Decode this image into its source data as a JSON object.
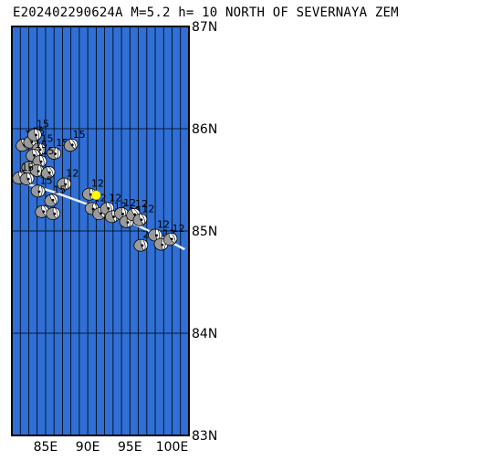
{
  "title": "E202402290624A M=5.2 h= 10 NORTH OF SEVERNAYA ZEM",
  "map": {
    "lon_range": [
      81,
      102
    ],
    "lat_range": [
      83,
      87
    ],
    "ocean_color": "#2f6fd6",
    "grid_color": "#000000",
    "border_color": "#000000",
    "lon_labels": [
      {
        "lon": 85,
        "text": "85E"
      },
      {
        "lon": 90,
        "text": "90E"
      },
      {
        "lon": 95,
        "text": "95E"
      },
      {
        "lon": 100,
        "text": "100E"
      }
    ],
    "lat_labels": [
      {
        "lat": 87,
        "text": "87N"
      },
      {
        "lat": 86,
        "text": "86N"
      },
      {
        "lat": 85,
        "text": "85N"
      },
      {
        "lat": 84,
        "text": "84N"
      },
      {
        "lat": 83,
        "text": "83N"
      }
    ],
    "ridge_line": [
      {
        "lon": 82.8,
        "lat": 85.46
      },
      {
        "lon": 86.0,
        "lat": 85.38
      },
      {
        "lon": 90.0,
        "lat": 85.26
      },
      {
        "lon": 94.0,
        "lat": 85.13
      },
      {
        "lon": 98.0,
        "lat": 84.97
      },
      {
        "lon": 101.5,
        "lat": 84.82
      }
    ],
    "event": {
      "lon": 91.0,
      "lat": 85.35,
      "color": "#ffff00"
    },
    "mechanisms": [
      {
        "lon": 82.3,
        "lat": 85.84,
        "label": "15"
      },
      {
        "lon": 83.2,
        "lat": 85.87,
        "label": "15"
      },
      {
        "lon": 83.7,
        "lat": 85.94,
        "label": "15"
      },
      {
        "lon": 84.2,
        "lat": 85.8,
        "label": "15"
      },
      {
        "lon": 86.0,
        "lat": 85.76,
        "label": "15"
      },
      {
        "lon": 88.0,
        "lat": 85.84,
        "label": "15"
      },
      {
        "lon": 83.5,
        "lat": 85.74,
        "label": "15"
      },
      {
        "lon": 84.3,
        "lat": 85.68,
        "label": "15"
      },
      {
        "lon": 83.0,
        "lat": 85.62,
        "label": ""
      },
      {
        "lon": 84.0,
        "lat": 85.59,
        "label": ""
      },
      {
        "lon": 85.3,
        "lat": 85.57,
        "label": ""
      },
      {
        "lon": 81.9,
        "lat": 85.52,
        "label": "15"
      },
      {
        "lon": 82.8,
        "lat": 85.51,
        "label": ""
      },
      {
        "lon": 87.2,
        "lat": 85.46,
        "label": "12"
      },
      {
        "lon": 84.1,
        "lat": 85.39,
        "label": "15"
      },
      {
        "lon": 85.7,
        "lat": 85.3,
        "label": "15"
      },
      {
        "lon": 84.6,
        "lat": 85.19,
        "label": ""
      },
      {
        "lon": 85.9,
        "lat": 85.17,
        "label": ""
      },
      {
        "lon": 90.2,
        "lat": 85.36,
        "label": "12"
      },
      {
        "lon": 90.5,
        "lat": 85.22,
        "label": "12"
      },
      {
        "lon": 91.4,
        "lat": 85.17,
        "label": ""
      },
      {
        "lon": 92.3,
        "lat": 85.22,
        "label": "12"
      },
      {
        "lon": 92.9,
        "lat": 85.14,
        "label": "12"
      },
      {
        "lon": 94.0,
        "lat": 85.17,
        "label": "12"
      },
      {
        "lon": 94.6,
        "lat": 85.09,
        "label": "12"
      },
      {
        "lon": 95.4,
        "lat": 85.16,
        "label": "12"
      },
      {
        "lon": 96.2,
        "lat": 85.11,
        "label": "12"
      },
      {
        "lon": 96.3,
        "lat": 84.86,
        "label": "20"
      },
      {
        "lon": 98.0,
        "lat": 84.96,
        "label": "12"
      },
      {
        "lon": 98.7,
        "lat": 84.87,
        "label": "12"
      },
      {
        "lon": 99.8,
        "lat": 84.92,
        "label": "12"
      }
    ]
  }
}
